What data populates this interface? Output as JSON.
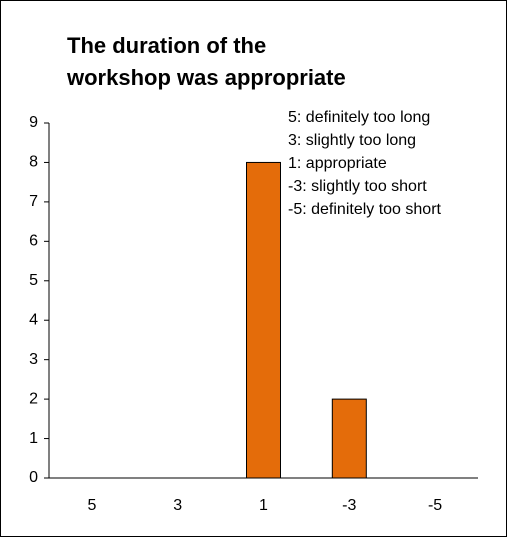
{
  "chart_data": {
    "type": "bar",
    "title": "The duration of the workshop was appropriate",
    "annotations": [
      "5: definitely too long",
      "3: slightly too long",
      "1: appropriate",
      "-3: slightly too short",
      "-5: definitely too short"
    ],
    "categories": [
      "5",
      "3",
      "1",
      "-3",
      "-5"
    ],
    "values": [
      0,
      0,
      8,
      2,
      0
    ],
    "color": "#e46c0a",
    "ylim": [
      0,
      9
    ],
    "yticks": [
      0,
      1,
      2,
      3,
      4,
      5,
      6,
      7,
      8,
      9
    ],
    "grid": false
  }
}
